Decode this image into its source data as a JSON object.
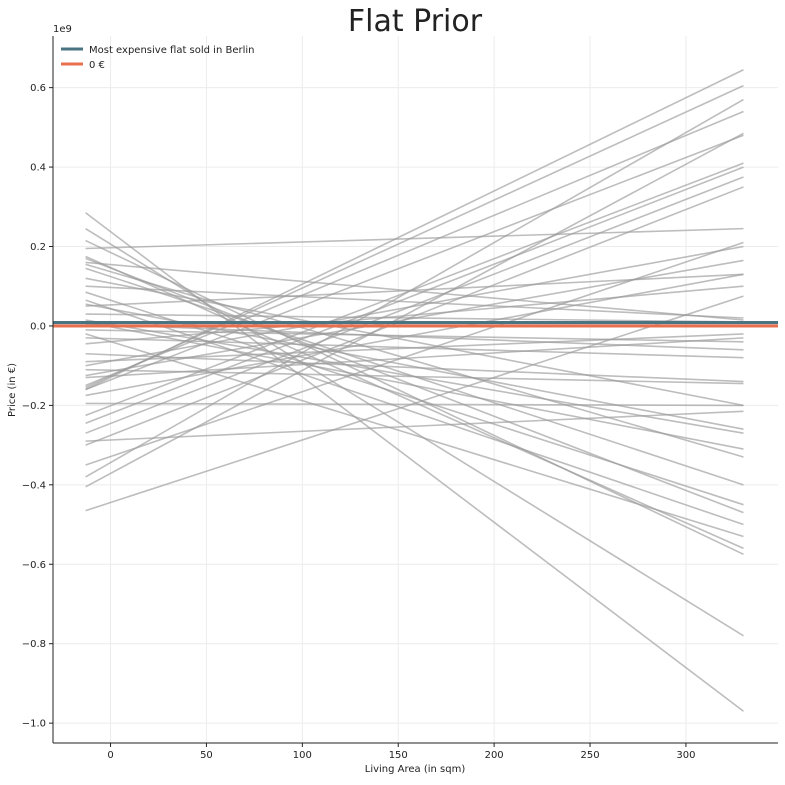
{
  "chart_data": {
    "type": "line",
    "title": "Flat Prior",
    "xlabel": "Living Area (in sqm)",
    "ylabel": "Price (in €)",
    "y_offset_label": "1e9",
    "xlim": [
      -30,
      348
    ],
    "ylim": [
      -1.05,
      0.73
    ],
    "x_ticks": [
      0,
      50,
      100,
      150,
      200,
      250,
      300
    ],
    "y_ticks": [
      -1.0,
      -0.8,
      -0.6,
      -0.4,
      -0.2,
      0.0,
      0.2,
      0.4,
      0.6
    ],
    "x_tick_labels": [
      "0",
      "50",
      "100",
      "150",
      "200",
      "250",
      "300"
    ],
    "y_tick_labels": [
      "−1.0",
      "−0.8",
      "−0.6",
      "−0.4",
      "−0.2",
      "0.0",
      "0.2",
      "0.4",
      "0.6"
    ],
    "grid": true,
    "legend_position": "top-left",
    "legend": [
      {
        "label": "Most expensive flat sold in Berlin",
        "color": "#4a7481",
        "y": 0.0085
      },
      {
        "label": "0 €",
        "color": "#e8704f",
        "y": 0.0
      }
    ],
    "prior_line_color": "#999999",
    "prior_lines_x": [
      -13,
      330
    ],
    "prior_lines": [
      [
        0.285,
        -0.97
      ],
      [
        0.245,
        -0.78
      ],
      [
        0.215,
        -0.575
      ],
      [
        0.195,
        0.245
      ],
      [
        0.175,
        -0.56
      ],
      [
        0.17,
        -0.47
      ],
      [
        0.155,
        -0.33
      ],
      [
        0.145,
        -0.4
      ],
      [
        0.12,
        -0.2
      ],
      [
        0.1,
        0.02
      ],
      [
        0.085,
        -0.45
      ],
      [
        0.065,
        -0.5
      ],
      [
        0.055,
        -0.26
      ],
      [
        0.05,
        0.13
      ],
      [
        0.03,
        0.01
      ],
      [
        0.015,
        -0.27
      ],
      [
        0.005,
        -0.06
      ],
      [
        -0.01,
        -0.04
      ],
      [
        -0.03,
        -0.08
      ],
      [
        -0.045,
        0.1
      ],
      [
        -0.07,
        -0.14
      ],
      [
        -0.09,
        -0.02
      ],
      [
        -0.1,
        0.2
      ],
      [
        -0.11,
        -0.145
      ],
      [
        -0.125,
        0.165
      ],
      [
        -0.13,
        -0.03
      ],
      [
        -0.15,
        0.54
      ],
      [
        -0.155,
        0.605
      ],
      [
        -0.16,
        0.645
      ],
      [
        -0.16,
        0.48
      ],
      [
        -0.175,
        0.13
      ],
      [
        -0.195,
        -0.2
      ],
      [
        -0.225,
        0.41
      ],
      [
        -0.245,
        0.4
      ],
      [
        -0.27,
        0.375
      ],
      [
        -0.29,
        -0.215
      ],
      [
        -0.3,
        0.35
      ],
      [
        -0.35,
        0.21
      ],
      [
        -0.38,
        0.57
      ],
      [
        -0.405,
        0.485
      ],
      [
        -0.465,
        0.075
      ],
      [
        0.01,
        -0.31
      ],
      [
        0.16,
        0.015
      ],
      [
        -0.02,
        -0.53
      ]
    ]
  }
}
